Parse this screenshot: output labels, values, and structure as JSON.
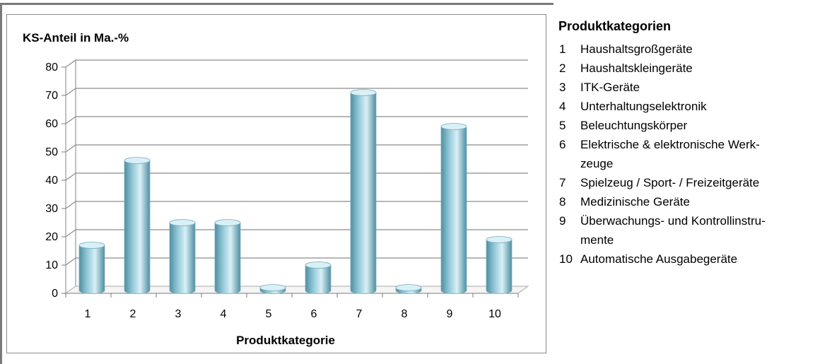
{
  "chart_data": {
    "type": "bar",
    "title": "",
    "xlabel": "Produktkategorie",
    "ylabel": "KS-Anteil in Ma.-%",
    "categories": [
      "1",
      "2",
      "3",
      "4",
      "5",
      "6",
      "7",
      "8",
      "9",
      "10"
    ],
    "values": [
      17,
      47,
      25,
      25,
      2,
      10,
      71,
      2,
      59,
      19
    ],
    "ylim": [
      0,
      80
    ],
    "yticks": [
      "0",
      "10",
      "20",
      "30",
      "40",
      "50",
      "60",
      "70",
      "80"
    ],
    "grid": true,
    "bar_color": "#8fc6d6",
    "bar_highlight_color": "#d9f0f6",
    "bar_shadow_color": "#4f8ea1",
    "legend_title": "Produktkategorien",
    "legend_entries": [
      {
        "number": "1",
        "label": "Haushaltsgroßgeräte"
      },
      {
        "number": "2",
        "label": "Haushaltskleingeräte"
      },
      {
        "number": "3",
        "label": "ITK-Geräte"
      },
      {
        "number": "4",
        "label": "Unterhaltungselektronik"
      },
      {
        "number": "5",
        "label": "Beleuchtungskörper"
      },
      {
        "number": "6",
        "label": "Elektrische & elektronische Werk-\nzeuge"
      },
      {
        "number": "7",
        "label": "Spielzeug / Sport- / Freizeitgeräte"
      },
      {
        "number": "8",
        "label": "Medizinische Geräte"
      },
      {
        "number": "9",
        "label": "Überwachungs- und Kontrollinstru-\nmente"
      },
      {
        "number": "10",
        "label": "Automatische Ausgabegeräte"
      }
    ]
  }
}
